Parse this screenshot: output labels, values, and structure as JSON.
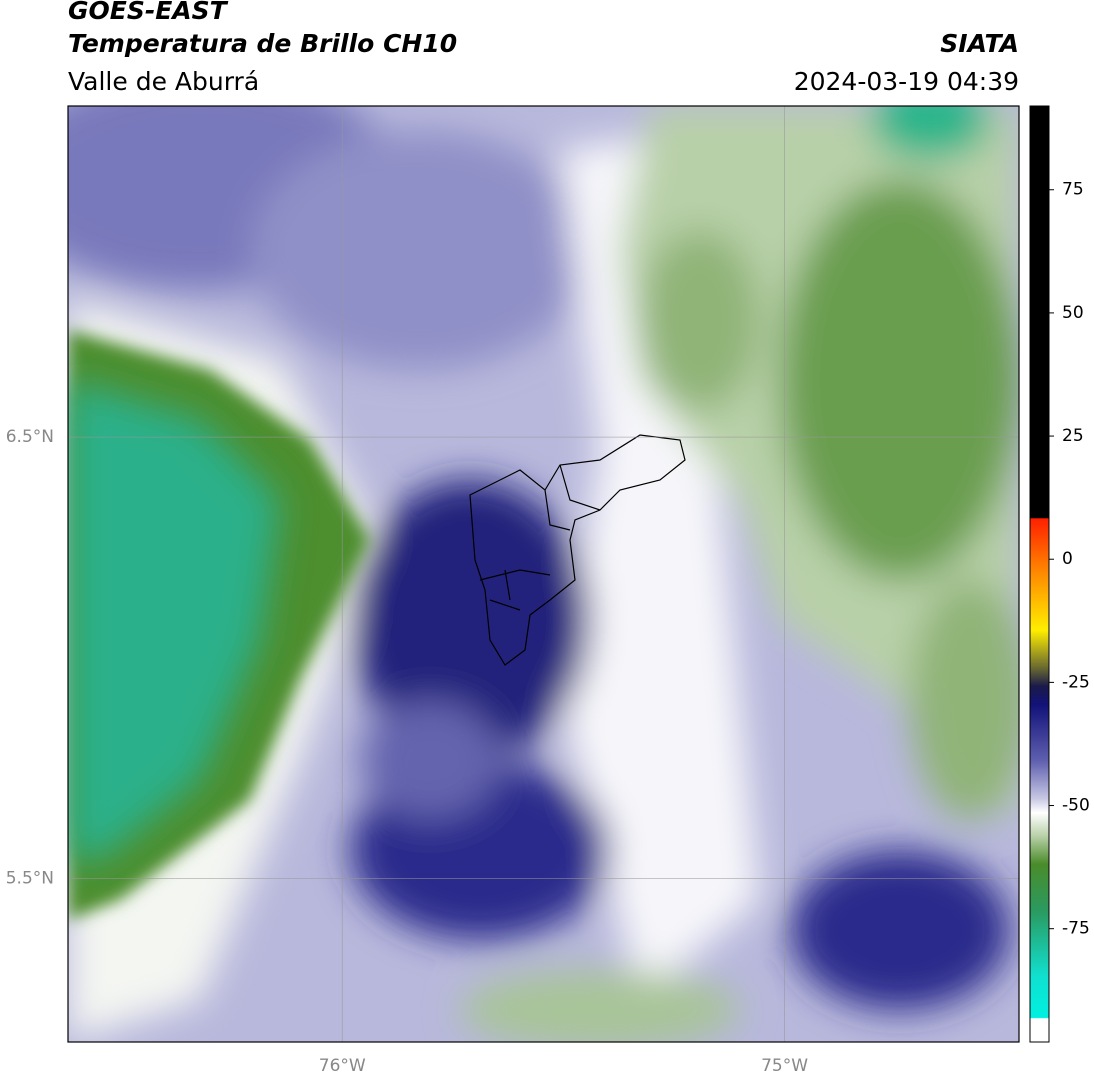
{
  "header": {
    "title": "GOES-EAST",
    "subtitle": "Temperatura de Brillo CH10",
    "region": "Valle de Aburrá",
    "source": "SIATA",
    "datetime": "2024-03-19 04:39"
  },
  "map": {
    "xlim": [
      -76.62,
      -74.47
    ],
    "ylim": [
      5.13,
      7.25
    ],
    "xticks": [
      {
        "value": -76,
        "label": "76°W"
      },
      {
        "value": -75,
        "label": "75°W"
      }
    ],
    "yticks": [
      {
        "value": 6.5,
        "label": "6.5°N"
      },
      {
        "value": 5.5,
        "label": "5.5°N"
      }
    ]
  },
  "colorbar": {
    "lim": [
      -98,
      92
    ],
    "ticks": [
      75,
      50,
      25,
      0,
      -25,
      -50,
      -75
    ]
  }
}
